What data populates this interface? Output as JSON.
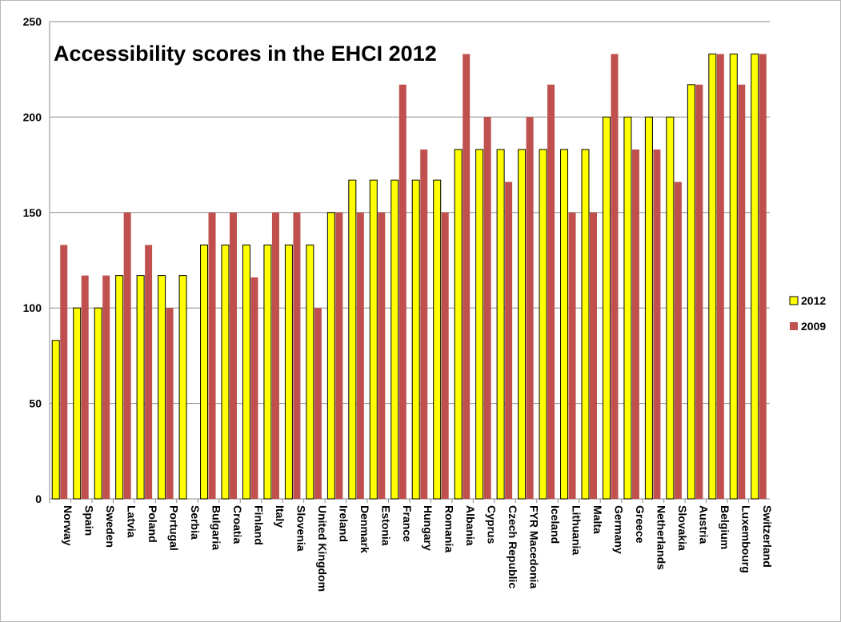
{
  "chart_data": {
    "type": "bar",
    "title": "Accessibility scores in the EHCI 2012",
    "xlabel": "",
    "ylabel": "",
    "ylim": [
      0,
      250
    ],
    "yticks": [
      0,
      50,
      100,
      150,
      200,
      250
    ],
    "grid": true,
    "legend_position": "right",
    "categories": [
      "Norway",
      "Spain",
      "Sweden",
      "Latvia",
      "Poland",
      "Portugal",
      "Serbia",
      "Bulgaria",
      "Croatia",
      "Finland",
      "Italy",
      "Slovenia",
      "United Kingdom",
      "Ireland",
      "Denmark",
      "Estonia",
      "France",
      "Hungary",
      "Romania",
      "Albania",
      "Cyprus",
      "Czech Republic",
      "FYR Macedonia",
      "Iceland",
      "Lithuania",
      "Malta",
      "Germany",
      "Greece",
      "Netherlands",
      "Slovakia",
      "Austria",
      "Belgium",
      "Luxembourg",
      "Switzerland"
    ],
    "series": [
      {
        "name": "2012",
        "color": "#ffff00",
        "values": [
          83,
          100,
          100,
          117,
          117,
          117,
          117,
          133,
          133,
          133,
          133,
          133,
          133,
          150,
          167,
          167,
          167,
          167,
          167,
          183,
          183,
          183,
          183,
          183,
          183,
          183,
          200,
          200,
          200,
          200,
          217,
          233,
          233,
          233
        ]
      },
      {
        "name": "2009",
        "color": "#c0504d",
        "values": [
          133,
          117,
          117,
          150,
          133,
          100,
          null,
          150,
          150,
          116,
          150,
          150,
          100,
          150,
          150,
          150,
          217,
          183,
          150,
          233,
          200,
          166,
          200,
          217,
          150,
          150,
          233,
          183,
          183,
          166,
          217,
          233,
          217,
          233
        ]
      }
    ]
  }
}
